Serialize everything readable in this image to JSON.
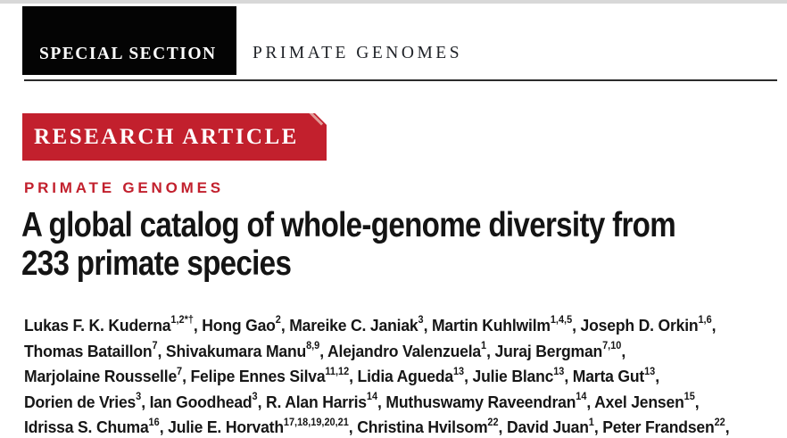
{
  "masthead": {
    "section_label": "SPECIAL SECTION",
    "topic": "PRIMATE GENOMES"
  },
  "article": {
    "kicker": "RESEARCH ARTICLE",
    "topic_label": "PRIMATE GENOMES",
    "title_line1": "A global catalog of whole-genome diversity from",
    "title_line2": "233 primate species",
    "author_lines": [
      [
        {
          "t": "Lukas F. K. Kuderna"
        },
        {
          "t": "1,2*†",
          "sup": true
        },
        {
          "t": ", Hong Gao"
        },
        {
          "t": "2",
          "sup": true
        },
        {
          "t": ", Mareike C. Janiak"
        },
        {
          "t": "3",
          "sup": true
        },
        {
          "t": ", Martin Kuhlwilm"
        },
        {
          "t": "1,4,5",
          "sup": true
        },
        {
          "t": ", Joseph D. Orkin"
        },
        {
          "t": "1,6",
          "sup": true
        },
        {
          "t": ","
        }
      ],
      [
        {
          "t": "Thomas Bataillon"
        },
        {
          "t": "7",
          "sup": true
        },
        {
          "t": ", Shivakumara Manu"
        },
        {
          "t": "8,9",
          "sup": true
        },
        {
          "t": ", Alejandro Valenzuela"
        },
        {
          "t": "1",
          "sup": true
        },
        {
          "t": ", Juraj Bergman"
        },
        {
          "t": "7,10",
          "sup": true
        },
        {
          "t": ","
        }
      ],
      [
        {
          "t": "Marjolaine Rousselle"
        },
        {
          "t": "7",
          "sup": true
        },
        {
          "t": ", Felipe Ennes Silva"
        },
        {
          "t": "11,12",
          "sup": true
        },
        {
          "t": ", Lidia Agueda"
        },
        {
          "t": "13",
          "sup": true
        },
        {
          "t": ", Julie Blanc"
        },
        {
          "t": "13",
          "sup": true
        },
        {
          "t": ", Marta Gut"
        },
        {
          "t": "13",
          "sup": true
        },
        {
          "t": ","
        }
      ],
      [
        {
          "t": "Dorien de Vries"
        },
        {
          "t": "3",
          "sup": true
        },
        {
          "t": ", Ian Goodhead"
        },
        {
          "t": "3",
          "sup": true
        },
        {
          "t": ", R. Alan Harris"
        },
        {
          "t": "14",
          "sup": true
        },
        {
          "t": ", Muthuswamy Raveendran"
        },
        {
          "t": "14",
          "sup": true
        },
        {
          "t": ", Axel Jensen"
        },
        {
          "t": "15",
          "sup": true
        },
        {
          "t": ","
        }
      ],
      [
        {
          "t": "Idrissa S. Chuma"
        },
        {
          "t": "16",
          "sup": true
        },
        {
          "t": ", Julie E. Horvath"
        },
        {
          "t": "17,18,19,20,21",
          "sup": true
        },
        {
          "t": ", Christina Hvilsom"
        },
        {
          "t": "22",
          "sup": true
        },
        {
          "t": ", David Juan"
        },
        {
          "t": "1",
          "sup": true
        },
        {
          "t": ", Peter Frandsen"
        },
        {
          "t": "22",
          "sup": true
        },
        {
          "t": ","
        }
      ]
    ]
  },
  "colors": {
    "accent_red": "#c2202d",
    "masthead_black": "#040404",
    "rule": "#2b2b2b",
    "top_strip": "#d8d8d8",
    "title_text": "#141414",
    "page_background": "#ffffff"
  }
}
